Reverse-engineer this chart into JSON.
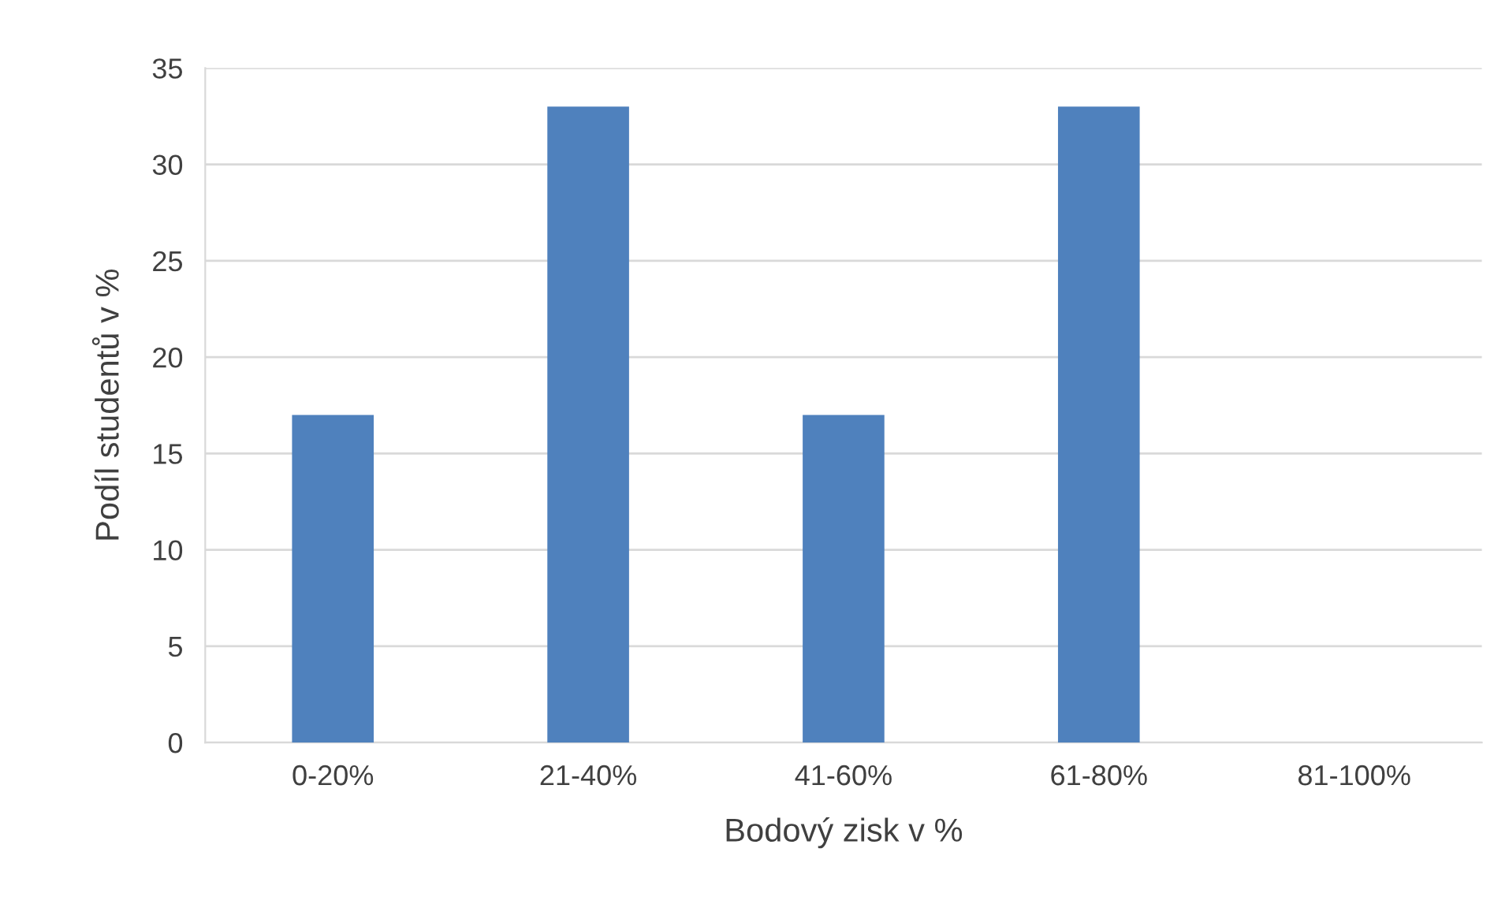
{
  "chart_data": {
    "type": "bar",
    "xlabel": "Bodový zisk v %",
    "ylabel": "Podíl studentů v %",
    "categories": [
      "0-20%",
      "21-40%",
      "41-60%",
      "61-80%",
      "81-100%"
    ],
    "values": [
      17,
      33,
      17,
      33,
      0
    ],
    "color": "#4f81bd",
    "ylim": [
      0,
      35
    ],
    "yticks": [
      0,
      5,
      10,
      15,
      20,
      25,
      30,
      35
    ],
    "grid": "y",
    "legend": false
  }
}
